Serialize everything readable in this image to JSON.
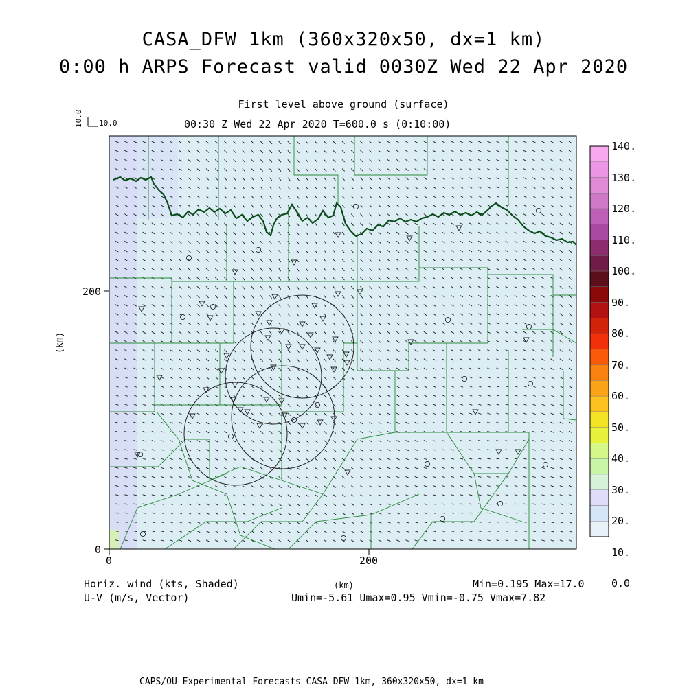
{
  "titles": {
    "line1": "CASA_DFW 1km (360x320x50, dx=1 km)",
    "line2": "0:00 h ARPS Forecast valid 0030Z Wed 22 Apr 2020",
    "level": "First level above ground (surface)",
    "time": "00:30 Z Wed 22 Apr 2020    T=600.0 s (0:10:00)"
  },
  "reference_vector": {
    "vertical_label": "10.0",
    "horizontal_label": "10.0"
  },
  "axes": {
    "x_label": "(km)",
    "y_label": "(km)",
    "x_ticks": [
      "0",
      "200"
    ],
    "y_ticks": [
      "0",
      "200"
    ]
  },
  "colorbar": {
    "labels": [
      "140.",
      "130.",
      "120.",
      "110.",
      "100.",
      "90.",
      "80.",
      "70.",
      "60.",
      "50.",
      "40.",
      "30.",
      "20.",
      "10.",
      "0.0"
    ],
    "colors": [
      "#f7a8ee",
      "#ee96e6",
      "#e08ad8",
      "#cf78c8",
      "#bf60b8",
      "#a8489e",
      "#8e2d6e",
      "#701c48",
      "#5a0f1a",
      "#8a0a0a",
      "#b31212",
      "#d2220a",
      "#f2300a",
      "#fa5a0a",
      "#fa8210",
      "#fba41a",
      "#fdc220",
      "#f4e224",
      "#e6f23c",
      "#d6f888",
      "#c8f6a8",
      "#d6f2d8",
      "#dedcf8",
      "#d6e6f8",
      "#e6f2f8"
    ]
  },
  "bottom": {
    "left_line1": "Horiz. wind (kts, Shaded)",
    "left_line2": "U-V (m/s, Vector)",
    "center_label": "(km)",
    "minmax": "Min=0.195 Max=17.0",
    "uv_stats": "Umin=-5.61 Umax=0.95 Vmin=-0.75 Vmax=7.82",
    "footer": "CAPS/OU Experimental Forecasts  CASA DFW 1km, 360x320x50, dx=1 km"
  }
}
